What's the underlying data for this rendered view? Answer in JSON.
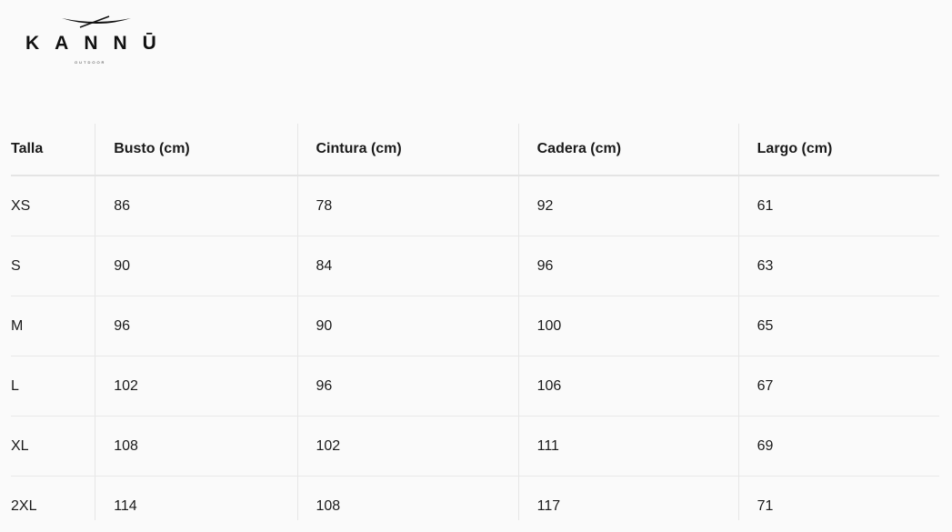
{
  "brand": {
    "name": "KANNŪ",
    "tagline": "OUTDOOR"
  },
  "table": {
    "headers": [
      "Talla",
      "Busto (cm)",
      "Cintura (cm)",
      "Cadera (cm)",
      "Largo (cm)"
    ],
    "rows": [
      [
        "XS",
        "86",
        "78",
        "92",
        "61"
      ],
      [
        "S",
        "90",
        "84",
        "96",
        "63"
      ],
      [
        "M",
        "96",
        "90",
        "100",
        "65"
      ],
      [
        "L",
        "102",
        "96",
        "106",
        "67"
      ],
      [
        "XL",
        "108",
        "102",
        "111",
        "69"
      ],
      [
        "2XL",
        "114",
        "108",
        "117",
        "71"
      ]
    ]
  }
}
